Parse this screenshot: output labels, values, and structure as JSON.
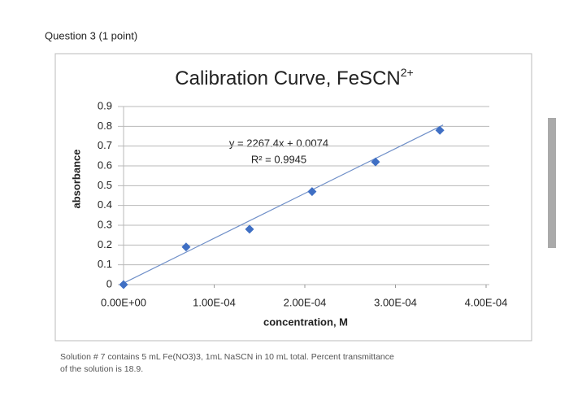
{
  "question": "Question 3 (1 point)",
  "note": "Solution # 7 contains 5 mL Fe(NO3)3, 1mL NaSCN in 10 mL total. Percent transmittance of the solution is 18.9.",
  "chart_data": {
    "type": "scatter",
    "title": "Calibration Curve, FeSCN",
    "title_superscript": "2+",
    "x_label": "concentration, M",
    "y_label": "absorbance",
    "x": [
      0,
      6.9e-05,
      0.000139,
      0.000208,
      0.000278,
      0.000349
    ],
    "values": [
      0,
      0.19,
      0.28,
      0.47,
      0.62,
      0.78
    ],
    "color": "#3f6fc4",
    "xlim": [
      0,
      0.0004
    ],
    "xticks": [
      {
        "value": 0,
        "label": "0.00E+00"
      },
      {
        "value": 0.0001,
        "label": "1.00E-04"
      },
      {
        "value": 0.0002,
        "label": "2.00E-04"
      },
      {
        "value": 0.0003,
        "label": "3.00E-04"
      },
      {
        "value": 0.0004,
        "label": "4.00E-04"
      }
    ],
    "ylim": [
      0,
      0.9
    ],
    "yticks": [
      0,
      0.1,
      0.2,
      0.3,
      0.4,
      0.5,
      0.6,
      0.7,
      0.8,
      0.9
    ],
    "grid": true,
    "trendline": {
      "slope": 2267.4,
      "intercept": 0.0074,
      "color": "#6f8fc8",
      "equation": "y = 2267.4x + 0.0074",
      "r_squared_label": "R² = 0.9945"
    }
  }
}
